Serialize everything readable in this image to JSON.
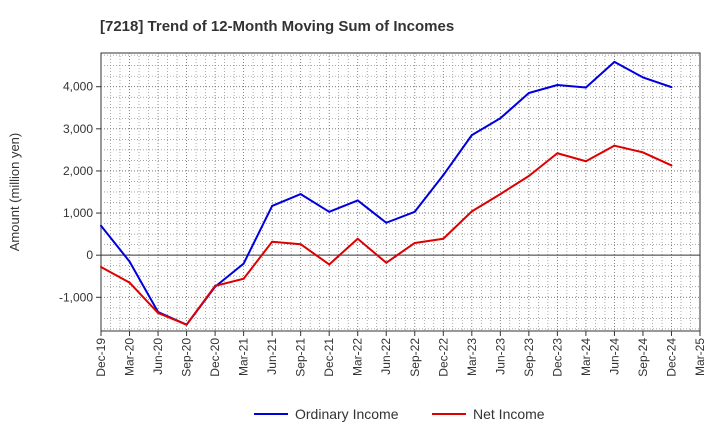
{
  "chart_data": {
    "type": "line",
    "title": "[7218]  Trend of 12-Month Moving Sum of Incomes",
    "xlabel": "",
    "ylabel": "Amount (million yen)",
    "categories": [
      "Dec-19",
      "Mar-20",
      "Jun-20",
      "Sep-20",
      "Dec-20",
      "Mar-21",
      "Jun-21",
      "Sep-21",
      "Dec-21",
      "Mar-22",
      "Jun-22",
      "Sep-22",
      "Dec-22",
      "Mar-23",
      "Jun-23",
      "Sep-23",
      "Dec-23",
      "Mar-24",
      "Jun-24",
      "Sep-24",
      "Dec-24",
      "Mar-25"
    ],
    "ylim": [
      -1800,
      4800
    ],
    "yticks": [
      -1000,
      0,
      1000,
      2000,
      3000,
      4000
    ],
    "ytick_labels": [
      "-1,000",
      "0",
      "1,000",
      "2,000",
      "3,000",
      "4,000"
    ],
    "grid": true,
    "legend_position": "bottom-center",
    "series": [
      {
        "name": "Ordinary Income",
        "color": "#0000dd",
        "values": [
          700,
          -150,
          -1350,
          -1650,
          -750,
          -200,
          1170,
          1450,
          1030,
          1300,
          770,
          1030,
          1900,
          2850,
          3250,
          3850,
          4040,
          3980,
          4590,
          4220,
          3990,
          null
        ]
      },
      {
        "name": "Net Income",
        "color": "#dd0000",
        "values": [
          -280,
          -650,
          -1370,
          -1650,
          -730,
          -560,
          320,
          260,
          -220,
          390,
          -180,
          290,
          390,
          1040,
          1450,
          1880,
          2420,
          2230,
          2600,
          2440,
          2130,
          null
        ]
      }
    ]
  }
}
